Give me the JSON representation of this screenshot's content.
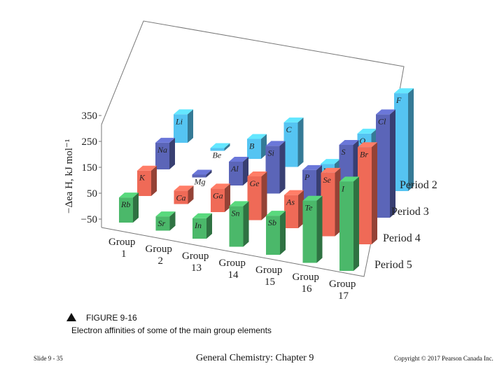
{
  "chart_data": {
    "type": "bar",
    "subtype": "3d-bar",
    "ylabel": "−Δea H, kJ mol⁻¹",
    "yticks": [
      -50,
      50,
      150,
      250,
      350
    ],
    "ylim": [
      -50,
      350
    ],
    "categories": [
      {
        "line1": "Group",
        "line2": "1"
      },
      {
        "line1": "Group",
        "line2": "2"
      },
      {
        "line1": "Group",
        "line2": "13"
      },
      {
        "line1": "Group",
        "line2": "14"
      },
      {
        "line1": "Group",
        "line2": "15"
      },
      {
        "line1": "Group",
        "line2": "16"
      },
      {
        "line1": "Group",
        "line2": "17"
      }
    ],
    "series": [
      {
        "name": "Period 2",
        "color": "#55c4f2",
        "elements": [
          "Li",
          "Be",
          "B",
          "C",
          "N",
          "O",
          "F"
        ],
        "values": [
          60,
          -50,
          27,
          122,
          -7,
          141,
          328
        ]
      },
      {
        "name": "Period 3",
        "color": "#5b65b8",
        "elements": [
          "Na",
          "Mg",
          "Al",
          "Si",
          "P",
          "S",
          "Cl"
        ],
        "values": [
          53,
          -50,
          42,
          134,
          72,
          200,
          349
        ]
      },
      {
        "name": "Period 4",
        "color": "#ef6a57",
        "elements": [
          "K",
          "Ca",
          "Ga",
          "Ge",
          "As",
          "Se",
          "Br"
        ],
        "values": [
          48,
          2,
          41,
          119,
          78,
          195,
          325
        ]
      },
      {
        "name": "Period 5",
        "color": "#4bb86a",
        "elements": [
          "Rb",
          "Sr",
          "In",
          "Sn",
          "Sb",
          "Te",
          "I"
        ],
        "values": [
          47,
          5,
          29,
          107,
          101,
          190,
          295
        ]
      }
    ]
  },
  "caption": {
    "figure_label": "FIGURE 9-16",
    "description": "Electron affinities of some of the main group elements"
  },
  "footer": {
    "slide": "Slide 9 - 35",
    "title": "General Chemistry: Chapter 9",
    "copyright": "Copyright © 2017 Pearson Canada Inc."
  }
}
